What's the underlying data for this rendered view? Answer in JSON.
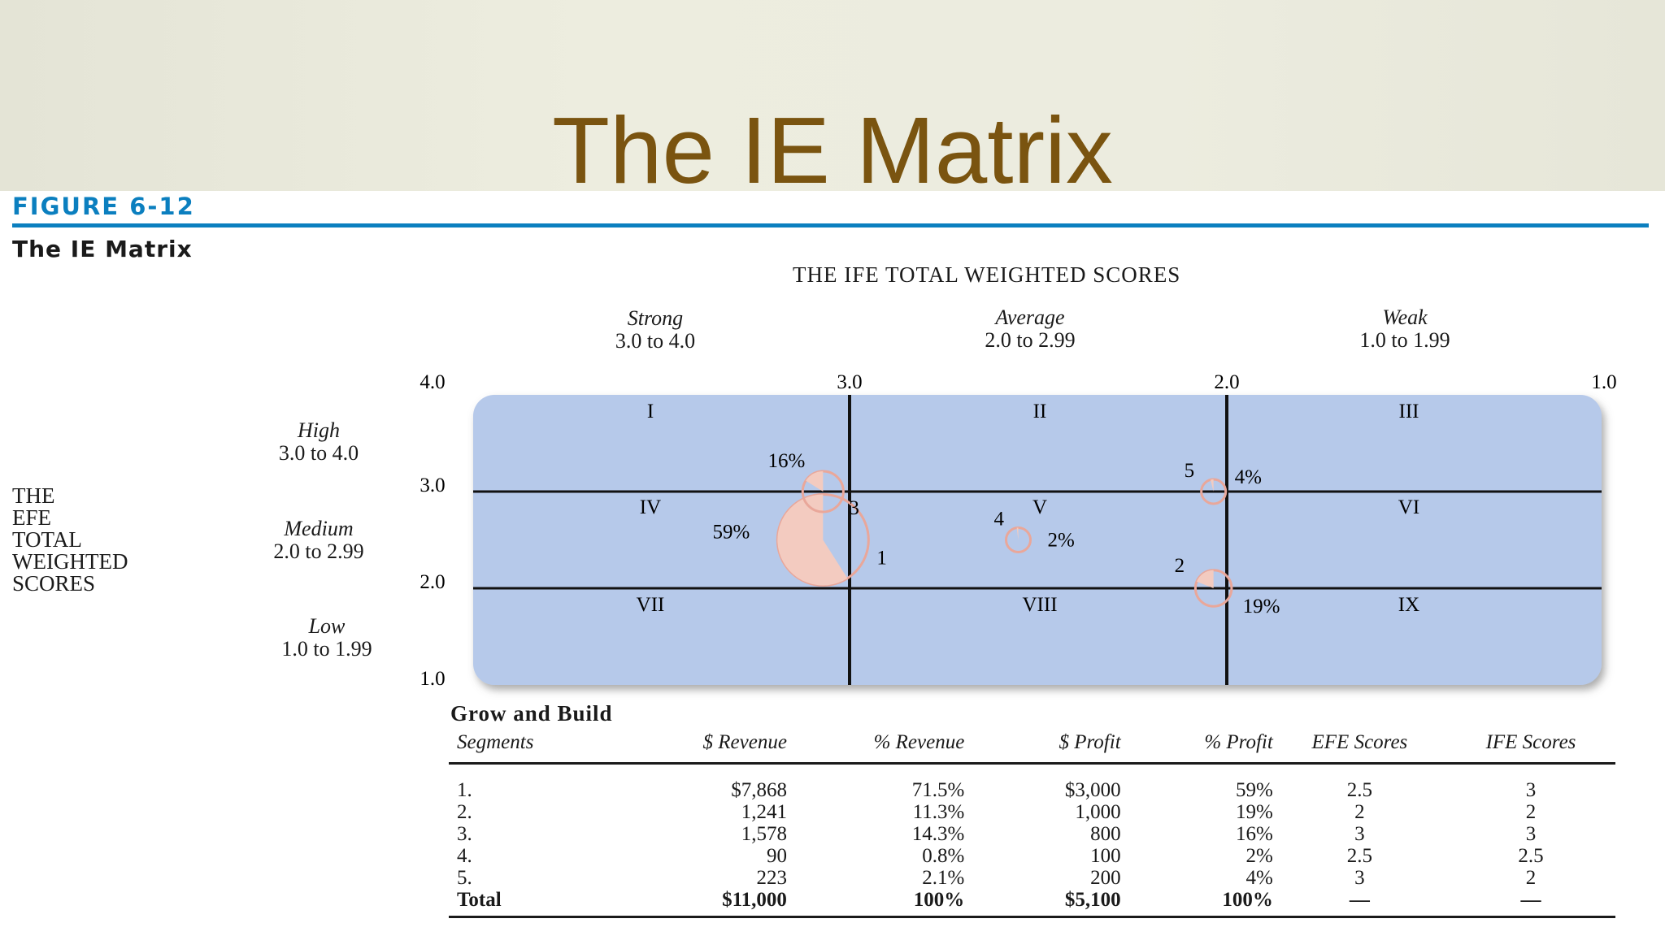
{
  "slide": {
    "title": "The IE Matrix"
  },
  "figure": {
    "number": "FIGURE 6-12",
    "title": "The IE Matrix"
  },
  "ife_axis": {
    "title": "THE IFE TOTAL WEIGHTED SCORES",
    "columns": [
      {
        "label": "Strong",
        "range": "3.0 to 4.0"
      },
      {
        "label": "Average",
        "range": "2.0 to 2.99"
      },
      {
        "label": "Weak",
        "range": "1.0 to 1.99"
      }
    ],
    "ticks": [
      "4.0",
      "3.0",
      "2.0",
      "1.0"
    ]
  },
  "efe_axis": {
    "title_lines": [
      "THE",
      "EFE",
      "TOTAL",
      "WEIGHTED",
      "SCORES"
    ],
    "rows": [
      {
        "label": "High",
        "range": "3.0 to 4.0"
      },
      {
        "label": "Medium",
        "range": "2.0 to 2.99"
      },
      {
        "label": "Low",
        "range": "1.0 to 1.99"
      }
    ],
    "ticks": [
      "3.0",
      "2.0",
      "1.0"
    ]
  },
  "cells": [
    "I",
    "II",
    "III",
    "IV",
    "V",
    "VI",
    "VII",
    "VIII",
    "IX"
  ],
  "colors": {
    "cell_fill": "#b6c9ea",
    "pie_fill": "#f3cbc0",
    "pie_outline": "#e9a79a",
    "accent": "#0b7fbf",
    "title": "#7a5410"
  },
  "chart_data": {
    "type": "scatter",
    "x_label": "THE IFE TOTAL WEIGHTED SCORES",
    "y_label": "THE EFE TOTAL WEIGHTED SCORES",
    "xlim": [
      4.0,
      1.0
    ],
    "ylim": [
      1.0,
      4.0
    ],
    "points": [
      {
        "id": "1",
        "ife": 3,
        "efe": 2.5,
        "revenue_share": 0.715,
        "profit_share": 0.59,
        "profit_label": "59%"
      },
      {
        "id": "2",
        "ife": 2,
        "efe": 2,
        "revenue_share": 0.113,
        "profit_share": 0.19,
        "profit_label": "19%"
      },
      {
        "id": "3",
        "ife": 3,
        "efe": 3,
        "revenue_share": 0.143,
        "profit_share": 0.16,
        "profit_label": "16%"
      },
      {
        "id": "4",
        "ife": 2.5,
        "efe": 2.5,
        "revenue_share": 0.008,
        "profit_share": 0.02,
        "profit_label": "2%"
      },
      {
        "id": "5",
        "ife": 2,
        "efe": 3,
        "revenue_share": 0.021,
        "profit_share": 0.04,
        "profit_label": "4%"
      }
    ]
  },
  "table": {
    "title": "Grow and Build",
    "headers": [
      "Segments",
      "$ Revenue",
      "% Revenue",
      "$ Profit",
      "% Profit",
      "EFE Scores",
      "IFE Scores"
    ],
    "rows": [
      [
        "1.",
        "$7,868",
        "71.5%",
        "$3,000",
        "59%",
        "2.5",
        "3"
      ],
      [
        "2.",
        "1,241",
        "11.3%",
        "1,000",
        "19%",
        "2",
        "2"
      ],
      [
        "3.",
        "1,578",
        "14.3%",
        "800",
        "16%",
        "3",
        "3"
      ],
      [
        "4.",
        "90",
        "0.8%",
        "100",
        "2%",
        "2.5",
        "2.5"
      ],
      [
        "5.",
        "223",
        "2.1%",
        "200",
        "4%",
        "3",
        "2"
      ]
    ],
    "total": [
      "Total",
      "$11,000",
      "100%",
      "$5,100",
      "100%",
      "—",
      "—"
    ]
  }
}
